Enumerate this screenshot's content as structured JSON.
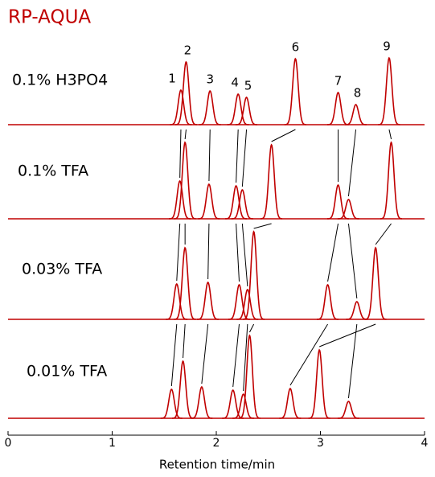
{
  "chart_data": {
    "type": "chromatogram",
    "title": "RP-AQUA",
    "xlabel": "Retention time/min",
    "xlim": [
      0,
      4
    ],
    "xticks": [
      0,
      1,
      2,
      3,
      4
    ],
    "peak_labels": [
      "1",
      "2",
      "3",
      "4",
      "5",
      "6",
      "7",
      "8",
      "9"
    ],
    "series": [
      {
        "name": "0.1% H3PO4",
        "color": "#c00000",
        "x": [
          1.66,
          1.71,
          1.94,
          2.21,
          2.29,
          2.76,
          3.17,
          3.34,
          3.66
        ],
        "values": [
          43,
          78,
          42,
          38,
          34,
          82,
          40,
          25,
          83
        ]
      },
      {
        "name": "0.1% TFA",
        "color": "#c00000",
        "x": [
          1.65,
          1.7,
          1.93,
          2.19,
          2.25,
          2.53,
          3.17,
          3.27,
          3.68
        ],
        "values": [
          47,
          95,
          43,
          41,
          36,
          92,
          42,
          24,
          95
        ]
      },
      {
        "name": "0.03% TFA",
        "color": "#c00000",
        "x": [
          1.62,
          1.7,
          1.92,
          2.22,
          2.3,
          2.36,
          3.07,
          3.35,
          3.53
        ],
        "values": [
          44,
          89,
          46,
          43,
          37,
          109,
          43,
          22,
          89
        ]
      },
      {
        "name": "0.01% TFA",
        "color": "#c00000",
        "x": [
          1.57,
          1.68,
          1.86,
          2.16,
          2.26,
          2.32,
          2.71,
          3.27,
          2.99
        ],
        "values": [
          36,
          71,
          39,
          35,
          30,
          103,
          37,
          21,
          85
        ]
      }
    ]
  }
}
